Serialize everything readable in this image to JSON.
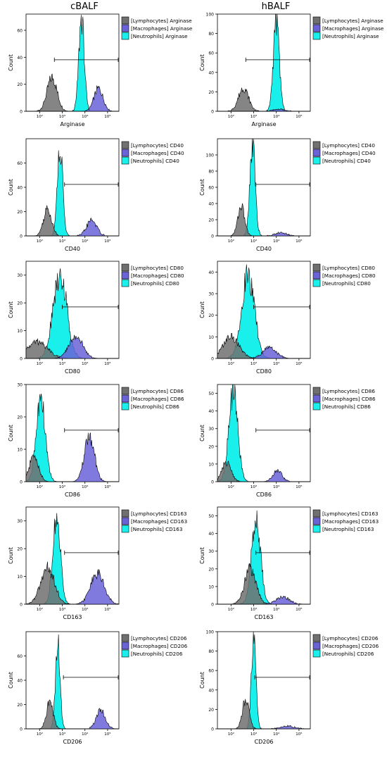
{
  "columns": [
    "cBALF",
    "hBALF"
  ],
  "colors": {
    "lymphocytes": "#707070",
    "macrophages": "#6a63d8",
    "neutrophils": "#19f0ec",
    "outline": "#000000"
  },
  "chart_data": [
    {
      "type": "area",
      "column": "cBALF",
      "marker": "Arginase",
      "xlabel": "Arginase",
      "ylabel": "Count",
      "x_ticks": [
        "10²",
        "10³",
        "10⁴",
        "10⁵"
      ],
      "y_ticks": [
        0,
        20,
        40,
        60
      ],
      "ylim": [
        0,
        72
      ],
      "x_log_range": [
        1.4,
        5.5
      ],
      "gate": [
        2.65,
        5.5
      ],
      "series": [
        {
          "name": "[Lymphocytes] Arginase",
          "peak_log": 2.55,
          "width": 0.22,
          "height": 25
        },
        {
          "name": "[Macrophages] Arginase",
          "peak_log": 4.6,
          "width": 0.2,
          "height": 17
        },
        {
          "name": "[Neutrophils] Arginase",
          "peak_log": 3.85,
          "width": 0.12,
          "height": 69
        }
      ]
    },
    {
      "type": "area",
      "column": "hBALF",
      "marker": "Arginase",
      "xlabel": "Arginase",
      "ylabel": "Count",
      "x_ticks": [
        "10²",
        "10³",
        "10⁴",
        "10⁵"
      ],
      "y_ticks": [
        0,
        20,
        40,
        60,
        80,
        100
      ],
      "ylim": [
        0,
        100
      ],
      "x_log_range": [
        1.4,
        5.5
      ],
      "gate": [
        2.65,
        5.5
      ],
      "series": [
        {
          "name": "[Lymphocytes] Arginase",
          "peak_log": 2.55,
          "width": 0.22,
          "height": 24
        },
        {
          "name": "[Macrophages] Arginase",
          "peak_log": 4.1,
          "width": 0.25,
          "height": 2
        },
        {
          "name": "[Neutrophils] Arginase",
          "peak_log": 4.0,
          "width": 0.13,
          "height": 95
        }
      ]
    },
    {
      "type": "area",
      "column": "cBALF",
      "marker": "CD40",
      "xlabel": "CD40",
      "ylabel": "Count",
      "x_ticks": [
        "10²",
        "10³",
        "10⁴",
        "10⁵"
      ],
      "y_ticks": [
        0,
        20,
        40,
        60
      ],
      "ylim": [
        0,
        80
      ],
      "x_log_range": [
        1.4,
        5.5
      ],
      "gate": [
        3.1,
        5.5
      ],
      "series": [
        {
          "name": "[Lymphocytes] CD40",
          "peak_log": 2.35,
          "width": 0.18,
          "height": 22
        },
        {
          "name": "[Macrophages] CD40",
          "peak_log": 4.3,
          "width": 0.22,
          "height": 13
        },
        {
          "name": "[Neutrophils] CD40",
          "peak_log": 2.9,
          "width": 0.12,
          "height": 73
        }
      ]
    },
    {
      "type": "area",
      "column": "hBALF",
      "marker": "CD40",
      "xlabel": "CD40",
      "ylabel": "Count",
      "x_ticks": [
        "10²",
        "10³",
        "10⁴",
        "10⁵"
      ],
      "y_ticks": [
        0,
        20,
        40,
        60,
        80,
        100
      ],
      "ylim": [
        0,
        120
      ],
      "x_log_range": [
        1.4,
        5.5
      ],
      "gate": [
        3.1,
        5.5
      ],
      "series": [
        {
          "name": "[Lymphocytes] CD40",
          "peak_log": 2.45,
          "width": 0.15,
          "height": 37
        },
        {
          "name": "[Macrophages] CD40",
          "peak_log": 4.2,
          "width": 0.25,
          "height": 4
        },
        {
          "name": "[Neutrophils] CD40",
          "peak_log": 2.95,
          "width": 0.12,
          "height": 112
        }
      ]
    },
    {
      "type": "area",
      "column": "cBALF",
      "marker": "CD80",
      "xlabel": "CD80",
      "ylabel": "Count",
      "x_ticks": [
        "10²",
        "10³",
        "10⁴",
        "10⁵"
      ],
      "y_ticks": [
        0,
        10,
        20,
        30
      ],
      "ylim": [
        0,
        35
      ],
      "x_log_range": [
        1.4,
        5.5
      ],
      "gate": [
        3.0,
        5.5
      ],
      "series": [
        {
          "name": "[Lymphocytes] CD80",
          "peak_log": 1.9,
          "width": 0.45,
          "height": 6
        },
        {
          "name": "[Macrophages] CD80",
          "peak_log": 3.6,
          "width": 0.3,
          "height": 8
        },
        {
          "name": "[Neutrophils] CD80",
          "peak_log": 2.9,
          "width": 0.3,
          "height": 31
        }
      ]
    },
    {
      "type": "area",
      "column": "hBALF",
      "marker": "CD80",
      "xlabel": "CD80",
      "ylabel": "Count",
      "x_ticks": [
        "10²",
        "10³",
        "10⁴",
        "10⁵"
      ],
      "y_ticks": [
        0,
        10,
        20,
        30,
        40
      ],
      "ylim": [
        0,
        45
      ],
      "x_log_range": [
        1.4,
        5.5
      ],
      "gate": [
        3.0,
        5.5
      ],
      "series": [
        {
          "name": "[Lymphocytes] CD80",
          "peak_log": 2.0,
          "width": 0.35,
          "height": 10
        },
        {
          "name": "[Macrophages] CD80",
          "peak_log": 3.7,
          "width": 0.3,
          "height": 5
        },
        {
          "name": "[Neutrophils] CD80",
          "peak_log": 2.75,
          "width": 0.28,
          "height": 39
        }
      ]
    },
    {
      "type": "area",
      "column": "cBALF",
      "marker": "CD86",
      "xlabel": "CD86",
      "ylabel": "Count",
      "x_ticks": [
        "10²",
        "10³",
        "10⁴",
        "10⁵"
      ],
      "y_ticks": [
        0,
        10,
        20,
        30
      ],
      "ylim": [
        0,
        30
      ],
      "x_log_range": [
        1.4,
        5.5
      ],
      "gate": [
        3.1,
        5.5
      ],
      "series": [
        {
          "name": "[Lymphocytes] CD86",
          "peak_log": 1.75,
          "width": 0.2,
          "height": 8
        },
        {
          "name": "[Macrophages] CD86",
          "peak_log": 4.2,
          "width": 0.22,
          "height": 14
        },
        {
          "name": "[Neutrophils] CD86",
          "peak_log": 2.05,
          "width": 0.2,
          "height": 25
        }
      ]
    },
    {
      "type": "area",
      "column": "hBALF",
      "marker": "CD86",
      "xlabel": "CD86",
      "ylabel": "Count",
      "x_ticks": [
        "10²",
        "10³",
        "10⁴",
        "10⁵"
      ],
      "y_ticks": [
        0,
        10,
        20,
        30,
        40,
        50
      ],
      "ylim": [
        0,
        55
      ],
      "x_log_range": [
        1.4,
        5.5
      ],
      "gate": [
        3.1,
        5.5
      ],
      "series": [
        {
          "name": "[Lymphocytes] CD86",
          "peak_log": 1.8,
          "width": 0.2,
          "height": 11
        },
        {
          "name": "[Macrophages] CD86",
          "peak_log": 4.05,
          "width": 0.2,
          "height": 6
        },
        {
          "name": "[Neutrophils] CD86",
          "peak_log": 2.1,
          "width": 0.2,
          "height": 50
        }
      ]
    },
    {
      "type": "area",
      "column": "cBALF",
      "marker": "CD163",
      "xlabel": "CD163",
      "ylabel": "Count",
      "x_ticks": [
        "10²",
        "10³",
        "10⁴",
        "10⁵"
      ],
      "y_ticks": [
        0,
        10,
        20,
        30
      ],
      "ylim": [
        0,
        35
      ],
      "x_log_range": [
        1.4,
        5.5
      ],
      "gate": [
        3.1,
        5.5
      ],
      "series": [
        {
          "name": "[Lymphocytes] CD163",
          "peak_log": 2.35,
          "width": 0.3,
          "height": 13
        },
        {
          "name": "[Macrophages] CD163",
          "peak_log": 4.55,
          "width": 0.3,
          "height": 11
        },
        {
          "name": "[Neutrophils] CD163",
          "peak_log": 2.75,
          "width": 0.17,
          "height": 31
        }
      ]
    },
    {
      "type": "area",
      "column": "hBALF",
      "marker": "CD163",
      "xlabel": "CD163",
      "ylabel": "Count",
      "x_ticks": [
        "10²",
        "10³",
        "10⁴",
        "10⁵"
      ],
      "y_ticks": [
        0,
        10,
        20,
        30,
        40,
        50
      ],
      "ylim": [
        0,
        55
      ],
      "x_log_range": [
        1.4,
        5.5
      ],
      "gate": [
        3.1,
        5.5
      ],
      "series": [
        {
          "name": "[Lymphocytes] CD163",
          "peak_log": 2.85,
          "width": 0.25,
          "height": 20
        },
        {
          "name": "[Macrophages] CD163",
          "peak_log": 4.3,
          "width": 0.3,
          "height": 4
        },
        {
          "name": "[Neutrophils] CD163",
          "peak_log": 3.1,
          "width": 0.2,
          "height": 50
        }
      ]
    },
    {
      "type": "area",
      "column": "cBALF",
      "marker": "CD206",
      "xlabel": "CD206",
      "ylabel": "Count",
      "x_ticks": [
        "10²",
        "10³",
        "10⁴",
        "10⁵"
      ],
      "y_ticks": [
        0,
        20,
        40,
        60
      ],
      "ylim": [
        0,
        80
      ],
      "x_log_range": [
        1.4,
        5.5
      ],
      "gate": [
        3.05,
        5.5
      ],
      "series": [
        {
          "name": "[Lymphocytes] CD206",
          "peak_log": 2.45,
          "width": 0.15,
          "height": 22
        },
        {
          "name": "[Macrophages] CD206",
          "peak_log": 4.7,
          "width": 0.2,
          "height": 15
        },
        {
          "name": "[Neutrophils] CD206",
          "peak_log": 2.8,
          "width": 0.1,
          "height": 74
        }
      ]
    },
    {
      "type": "area",
      "column": "hBALF",
      "marker": "CD206",
      "xlabel": "CD206",
      "ylabel": "Count",
      "x_ticks": [
        "10²",
        "10³",
        "10⁴",
        "10⁵"
      ],
      "y_ticks": [
        0,
        20,
        40,
        60,
        80,
        100
      ],
      "ylim": [
        0,
        100
      ],
      "x_log_range": [
        1.4,
        5.5
      ],
      "gate": [
        3.05,
        5.5
      ],
      "series": [
        {
          "name": "[Lymphocytes] CD206",
          "peak_log": 2.65,
          "width": 0.15,
          "height": 30
        },
        {
          "name": "[Macrophages] CD206",
          "peak_log": 4.5,
          "width": 0.3,
          "height": 3
        },
        {
          "name": "[Neutrophils] CD206",
          "peak_log": 3.0,
          "width": 0.1,
          "height": 97
        }
      ]
    }
  ]
}
